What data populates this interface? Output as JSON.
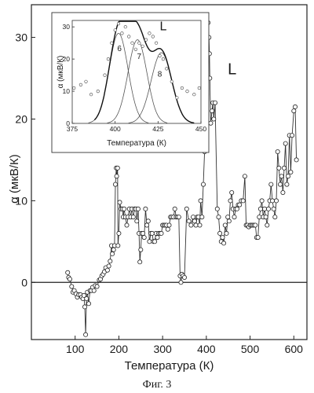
{
  "caption": "Фиг. 3",
  "chart_data": [
    {
      "type": "line",
      "xlabel": "Температура (К)",
      "ylabel": "α (мкВ/К)",
      "xlim": [
        0,
        630
      ],
      "ylim": [
        -7,
        34
      ],
      "x_ticks": [
        100,
        200,
        300,
        400,
        500,
        600
      ],
      "y_ticks": [
        0,
        10,
        20,
        30
      ],
      "zero_line": 0,
      "annotation": {
        "text": "L",
        "x": 449,
        "y": 25.5
      },
      "series": [
        {
          "markers": "open-circle",
          "points": [
            [
              83,
              1.2
            ],
            [
              85,
              0.6
            ],
            [
              88,
              0.4
            ],
            [
              92,
              -0.5
            ],
            [
              95,
              -1.2
            ],
            [
              98,
              -1.0
            ],
            [
              102,
              -1.4
            ],
            [
              105,
              -1.8
            ],
            [
              108,
              -1.5
            ],
            [
              112,
              -1.5
            ],
            [
              115,
              -1.8
            ],
            [
              118,
              -2.0
            ],
            [
              120,
              -1.6
            ],
            [
              122,
              -3.0
            ],
            [
              124,
              -6.4
            ],
            [
              126,
              -2.0
            ],
            [
              128,
              -1.2
            ],
            [
              131,
              -2.6
            ],
            [
              134,
              -1.0
            ],
            [
              137,
              -1.0
            ],
            [
              140,
              -0.6
            ],
            [
              143,
              -1.0
            ],
            [
              146,
              -0.4
            ],
            [
              150,
              -0.5
            ],
            [
              155,
              0.3
            ],
            [
              158,
              0.4
            ],
            [
              161,
              0.8
            ],
            [
              164,
              1.0
            ],
            [
              167,
              1.3
            ],
            [
              170,
              1.8
            ],
            [
              174,
              1.5
            ],
            [
              177,
              2.0
            ],
            [
              180,
              2.6
            ],
            [
              183,
              4.5
            ],
            [
              185,
              3.5
            ],
            [
              188,
              4.0
            ],
            [
              190,
              4.5
            ],
            [
              192,
              12.0
            ],
            [
              194,
              14.0
            ],
            [
              195,
              13.0
            ],
            [
              197,
              14.0
            ],
            [
              198,
              4.5
            ],
            [
              200,
              6.0
            ],
            [
              202,
              9.8
            ],
            [
              205,
              9.0
            ],
            [
              208,
              9.0
            ],
            [
              210,
              8.0
            ],
            [
              212,
              9.0
            ],
            [
              215,
              8.0
            ],
            [
              218,
              7.0
            ],
            [
              221,
              8.0
            ],
            [
              224,
              9.0
            ],
            [
              227,
              8.0
            ],
            [
              230,
              9.0
            ],
            [
              233,
              8.0
            ],
            [
              236,
              9.0
            ],
            [
              239,
              9.0
            ],
            [
              241,
              7.5
            ],
            [
              244,
              9.0
            ],
            [
              246,
              6.0
            ],
            [
              248,
              2.5
            ],
            [
              250,
              4.0
            ],
            [
              252,
              6.0
            ],
            [
              255,
              6.0
            ],
            [
              258,
              5.5
            ],
            [
              261,
              9.0
            ],
            [
              264,
              7.0
            ],
            [
              267,
              7.5
            ],
            [
              270,
              5.0
            ],
            [
              273,
              6.0
            ],
            [
              276,
              6.0
            ],
            [
              279,
              5.0
            ],
            [
              282,
              5.0
            ],
            [
              285,
              6.0
            ],
            [
              288,
              5.5
            ],
            [
              291,
              6.0
            ],
            [
              294,
              6.0
            ],
            [
              297,
              6.0
            ],
            [
              300,
              7.0
            ],
            [
              303,
              7.0
            ],
            [
              306,
              7.0
            ],
            [
              309,
              7.0
            ],
            [
              312,
              6.5
            ],
            [
              315,
              7.0
            ],
            [
              318,
              8.0
            ],
            [
              321,
              8.0
            ],
            [
              325,
              8.0
            ],
            [
              328,
              9.0
            ],
            [
              331,
              8.0
            ],
            [
              334,
              8.0
            ],
            [
              337,
              8.0
            ],
            [
              340,
              0.8
            ],
            [
              342,
              0.0
            ],
            [
              344,
              1.0
            ],
            [
              347,
              0.8
            ],
            [
              350,
              0.6
            ],
            [
              355,
              9.0
            ],
            [
              360,
              7.5
            ],
            [
              365,
              7.0
            ],
            [
              370,
              8.0
            ],
            [
              373,
              7.5
            ],
            [
              376,
              7.0
            ],
            [
              379,
              8.0
            ],
            [
              382,
              8.0
            ],
            [
              385,
              7.0
            ],
            [
              387,
              10.0
            ],
            [
              390,
              8.0
            ],
            [
              393,
              12.0
            ],
            [
              396,
              16.0
            ],
            [
              399,
              18.0
            ],
            [
              401,
              23.0
            ],
            [
              403,
              30.0
            ],
            [
              404,
              31.8
            ],
            [
              406,
              30.0
            ],
            [
              407,
              28.0
            ],
            [
              408,
              25.0
            ],
            [
              410,
              19.5
            ],
            [
              413,
              21.0
            ],
            [
              415,
              22.0
            ],
            [
              417,
              20.0
            ],
            [
              420,
              22.0
            ],
            [
              425,
              9.0
            ],
            [
              428,
              8.0
            ],
            [
              431,
              6.0
            ],
            [
              434,
              5.0
            ],
            [
              437,
              5.5
            ],
            [
              440,
              4.8
            ],
            [
              443,
              7.0
            ],
            [
              446,
              6.0
            ],
            [
              449,
              8.0
            ],
            [
              452,
              7.5
            ],
            [
              455,
              10.0
            ],
            [
              458,
              11.0
            ],
            [
              461,
              9.0
            ],
            [
              464,
              8.0
            ],
            [
              467,
              9.0
            ],
            [
              470,
              9.0
            ],
            [
              473,
              9.5
            ],
            [
              476,
              9.5
            ],
            [
              480,
              10.0
            ],
            [
              484,
              10.0
            ],
            [
              488,
              13.0
            ],
            [
              491,
              7.0
            ],
            [
              494,
              7.0
            ],
            [
              497,
              6.8
            ],
            [
              500,
              7.0
            ],
            [
              503,
              7.0
            ],
            [
              506,
              7.0
            ],
            [
              509,
              7.0
            ],
            [
              512,
              7.0
            ],
            [
              515,
              5.5
            ],
            [
              518,
              5.5
            ],
            [
              521,
              8.0
            ],
            [
              524,
              9.0
            ],
            [
              527,
              10.0
            ],
            [
              530,
              8.0
            ],
            [
              533,
              9.0
            ],
            [
              536,
              8.0
            ],
            [
              539,
              7.0
            ],
            [
              542,
              9.0
            ],
            [
              545,
              10.0
            ],
            [
              548,
              12.0
            ],
            [
              551,
              10.0
            ],
            [
              554,
              9.0
            ],
            [
              557,
              8.0
            ],
            [
              560,
              10.0
            ],
            [
              563,
              16.0
            ],
            [
              566,
              14.0
            ],
            [
              569,
              12.0
            ],
            [
              572,
              13.0
            ],
            [
              575,
              11.0
            ],
            [
              578,
              14.0
            ],
            [
              581,
              17.0
            ],
            [
              584,
              12.0
            ],
            [
              587,
              13.0
            ],
            [
              590,
              18.0
            ],
            [
              593,
              13.5
            ],
            [
              596,
              18.0
            ],
            [
              600,
              21.0
            ],
            [
              603,
              21.5
            ],
            [
              606,
              15.0
            ]
          ]
        }
      ]
    },
    {
      "type": "line",
      "xlabel": "Температура (К)",
      "ylabel": "α (мкВ/К)",
      "xlim": [
        375,
        450
      ],
      "ylim": [
        0,
        32
      ],
      "x_ticks": [
        375,
        400,
        425,
        450
      ],
      "y_ticks": [
        0,
        10,
        20,
        30
      ],
      "annotation": {
        "text": "L",
        "x": 426,
        "y": 29
      },
      "peak_labels": [
        {
          "text": "6",
          "x": 402.5,
          "y": 22.5
        },
        {
          "text": "7",
          "x": 414,
          "y": 20
        },
        {
          "text": "8",
          "x": 426,
          "y": 14.5
        }
      ],
      "components": [
        {
          "label": "6",
          "center": 402,
          "height": 28,
          "width": 5.5
        },
        {
          "label": "7",
          "center": 413,
          "height": 26,
          "width": 5.5
        },
        {
          "label": "8",
          "center": 427,
          "height": 22,
          "width": 6
        }
      ],
      "points": [
        [
          376,
          11
        ],
        [
          380,
          12
        ],
        [
          383,
          13
        ],
        [
          386,
          9
        ],
        [
          390,
          10
        ],
        [
          394,
          15
        ],
        [
          396,
          20
        ],
        [
          398,
          25
        ],
        [
          400,
          29
        ],
        [
          402,
          31
        ],
        [
          404,
          28
        ],
        [
          406,
          30
        ],
        [
          408,
          27
        ],
        [
          410,
          25
        ],
        [
          412,
          23
        ],
        [
          414,
          25
        ],
        [
          416,
          24
        ],
        [
          418,
          26
        ],
        [
          420,
          28
        ],
        [
          422,
          27
        ],
        [
          424,
          25
        ],
        [
          426,
          21
        ],
        [
          428,
          20
        ],
        [
          430,
          17
        ],
        [
          433,
          13
        ],
        [
          436,
          8
        ],
        [
          439,
          11
        ],
        [
          442,
          10
        ],
        [
          446,
          9
        ],
        [
          449,
          11
        ]
      ]
    }
  ]
}
